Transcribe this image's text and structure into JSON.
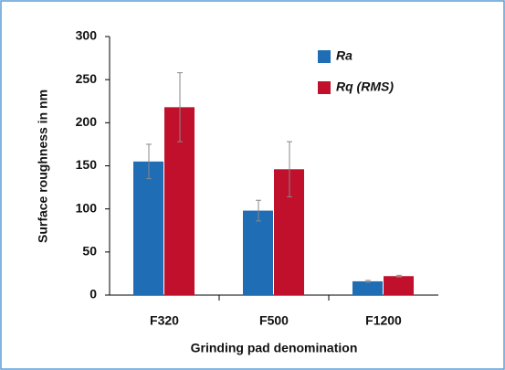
{
  "chart_data": {
    "type": "bar",
    "x_label": "Grinding pad denomination",
    "y_label": "Surface roughness in nm",
    "categories": [
      "F320",
      "F500",
      "F1200"
    ],
    "series": [
      {
        "name": "Ra",
        "color": "#1f6db4",
        "values": [
          155,
          98,
          16
        ],
        "errors": [
          20,
          12,
          1
        ]
      },
      {
        "name": "Rq (RMS)",
        "color": "#c0102b",
        "values": [
          218,
          146,
          22
        ],
        "errors": [
          40,
          32,
          1
        ]
      }
    ],
    "ylim": [
      0,
      300
    ],
    "yticks": [
      0,
      50,
      100,
      150,
      200,
      250,
      300
    ],
    "legend": "upper right"
  }
}
